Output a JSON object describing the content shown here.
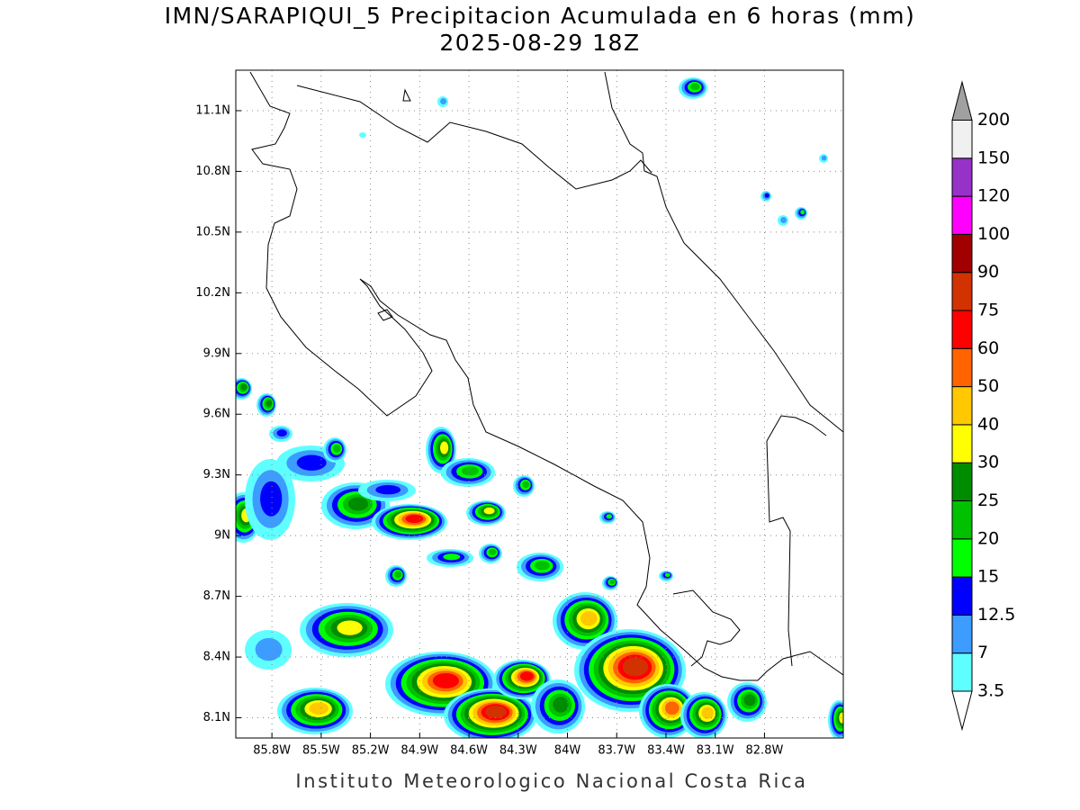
{
  "title": "IMN/SARAPIQUI_5 Precipitacion Acumulada en 6 horas (mm)",
  "subtitle": "2025-08-29 18Z",
  "map": {
    "ylim": [
      8.0,
      11.3
    ],
    "yticks": [
      {
        "value": 11.1,
        "label": "11.1N"
      },
      {
        "value": 10.8,
        "label": "10.8N"
      },
      {
        "value": 10.5,
        "label": "10.5N"
      },
      {
        "value": 10.2,
        "label": "10.2N"
      },
      {
        "value": 9.9,
        "label": "9.9N"
      },
      {
        "value": 9.6,
        "label": "9.6N"
      },
      {
        "value": 9.3,
        "label": "9.3N"
      },
      {
        "value": 9.0,
        "label": "9N"
      },
      {
        "value": 8.7,
        "label": "8.7N"
      },
      {
        "value": 8.4,
        "label": "8.4N"
      },
      {
        "value": 8.1,
        "label": "8.1N"
      }
    ],
    "xlim": [
      -86.02,
      -82.32
    ],
    "xticks": [
      {
        "value": -85.8,
        "label": "85.8W"
      },
      {
        "value": -85.5,
        "label": "85.5W"
      },
      {
        "value": -85.2,
        "label": "85.2W"
      },
      {
        "value": -84.9,
        "label": "84.9W"
      },
      {
        "value": -84.6,
        "label": "84.6W"
      },
      {
        "value": -84.3,
        "label": "84.3W"
      },
      {
        "value": -84.0,
        "label": "84W"
      },
      {
        "value": -83.7,
        "label": "83.7W"
      },
      {
        "value": -83.4,
        "label": "83.4W"
      },
      {
        "value": -83.1,
        "label": "83.1W"
      },
      {
        "value": -82.8,
        "label": "82.8W"
      }
    ],
    "grid": true
  },
  "colorbar": {
    "levels": [
      3.5,
      7,
      12.5,
      15,
      20,
      25,
      30,
      40,
      50,
      60,
      75,
      90,
      100,
      120,
      150,
      200
    ],
    "colors": [
      "#5fffff",
      "#3c9cff",
      "#0000ff",
      "#00ff00",
      "#00c000",
      "#008c00",
      "#ffff00",
      "#ffc800",
      "#ff6400",
      "#ff0000",
      "#d23200",
      "#a00000",
      "#ff00ff",
      "#9632c8",
      "#f0f0f0"
    ],
    "under_color": "#ffffff",
    "over_color": "#a0a0a0"
  },
  "footer": "Instituto Meteorologico Nacional Costa Rica"
}
